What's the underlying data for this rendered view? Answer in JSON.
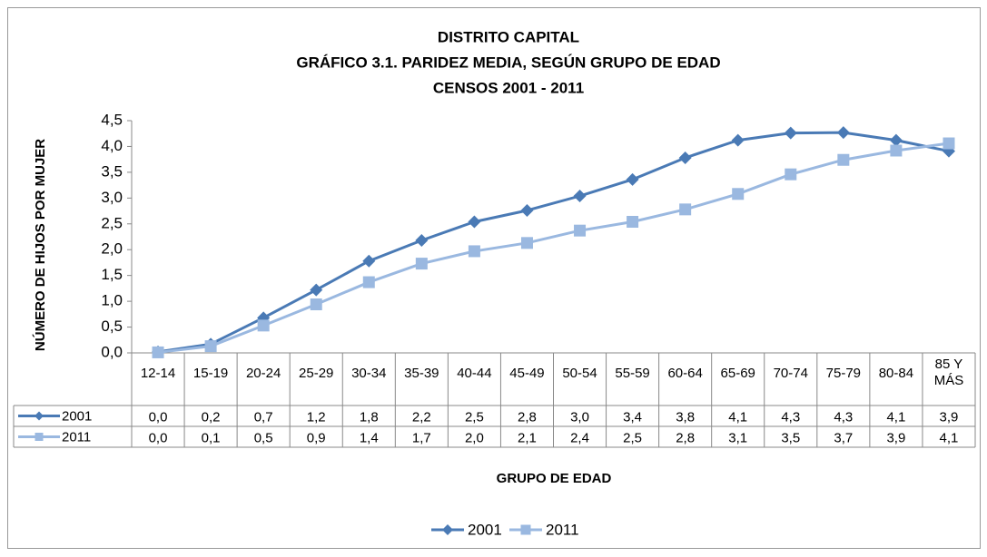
{
  "chart_data": {
    "type": "line",
    "title": [
      "DISTRITO CAPITAL",
      "GRÁFICO 3.1. PARIDEZ MEDIA, SEGÚN GRUPO DE EDAD",
      "CENSOS 2001 - 2011"
    ],
    "y_label": "NÚMERO DE HIJOS POR MUJER",
    "x_label": "GRUPO DE EDAD",
    "categories": [
      "12-14",
      "15-19",
      "20-24",
      "25-29",
      "30-34",
      "35-39",
      "40-44",
      "45-49",
      "50-54",
      "55-59",
      "60-64",
      "65-69",
      "70-74",
      "75-79",
      "80-84",
      "85 Y MÁS"
    ],
    "series": [
      {
        "name": "2001",
        "color": "#4a7ab5",
        "marker": "diamond",
        "values": [
          0.02,
          0.17,
          0.68,
          1.22,
          1.78,
          2.18,
          2.54,
          2.76,
          3.04,
          3.36,
          3.78,
          4.12,
          4.26,
          4.27,
          4.12,
          3.91
        ],
        "value_labels": [
          "0,0",
          "0,2",
          "0,7",
          "1,2",
          "1,8",
          "2,2",
          "2,5",
          "2,8",
          "3,0",
          "3,4",
          "3,8",
          "4,1",
          "4,3",
          "4,3",
          "4,1",
          "3,9"
        ]
      },
      {
        "name": "2011",
        "color": "#9ab8e0",
        "marker": "square",
        "values": [
          0.01,
          0.13,
          0.53,
          0.94,
          1.37,
          1.73,
          1.97,
          2.13,
          2.37,
          2.54,
          2.78,
          3.08,
          3.46,
          3.74,
          3.92,
          4.06
        ],
        "value_labels": [
          "0,0",
          "0,1",
          "0,5",
          "0,9",
          "1,4",
          "1,7",
          "2,0",
          "2,1",
          "2,4",
          "2,5",
          "2,8",
          "3,1",
          "3,5",
          "3,7",
          "3,9",
          "4,1"
        ]
      }
    ],
    "ylim": [
      0,
      4.5
    ],
    "yticks": [
      {
        "value": 0,
        "label": "0,0"
      },
      {
        "value": 0.5,
        "label": "0,5"
      },
      {
        "value": 1,
        "label": "1,0"
      },
      {
        "value": 1.5,
        "label": "1,5"
      },
      {
        "value": 2,
        "label": "2,0"
      },
      {
        "value": 2.5,
        "label": "2,5"
      },
      {
        "value": 3,
        "label": "3,0"
      },
      {
        "value": 3.5,
        "label": "3,5"
      },
      {
        "value": 4,
        "label": "4,0"
      },
      {
        "value": 4.5,
        "label": "4,5"
      }
    ],
    "grid": false,
    "data_table": true,
    "legend": "bottom"
  }
}
